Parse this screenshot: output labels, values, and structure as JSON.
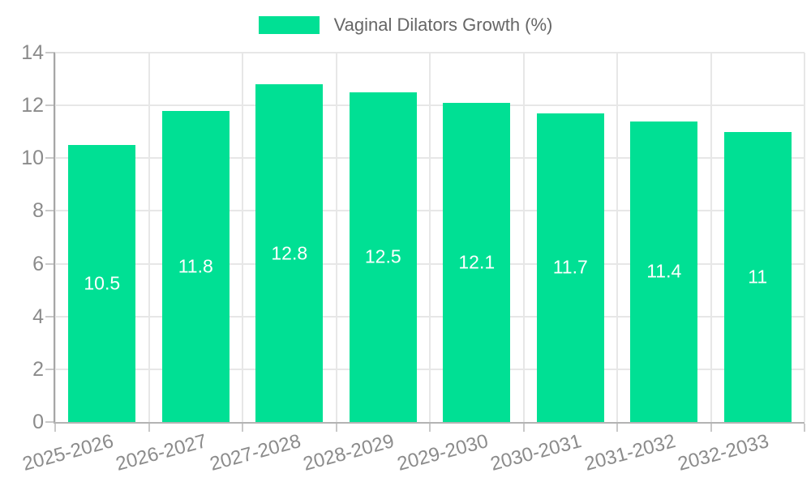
{
  "chart_data": {
    "type": "bar",
    "title": "",
    "legend": [
      "Vaginal Dilators Growth (%)"
    ],
    "legend_position": "top",
    "categories": [
      "2025-2026",
      "2026-2027",
      "2027-2028",
      "2028-2029",
      "2029-2030",
      "2030-2031",
      "2031-2032",
      "2032-2033"
    ],
    "values": [
      10.5,
      11.8,
      12.8,
      12.5,
      12.1,
      11.7,
      11.4,
      11
    ],
    "value_labels": [
      "10.5",
      "11.8",
      "12.8",
      "12.5",
      "12.1",
      "11.7",
      "11.4",
      "11"
    ],
    "xlabel": "",
    "ylabel": "",
    "ylim": [
      0,
      14
    ],
    "yticks": [
      0,
      2,
      4,
      6,
      8,
      10,
      12,
      14
    ],
    "grid": true,
    "colors": {
      "bar": "#00e094",
      "value_label": "#ffffff",
      "axis_text": "#8b8b8b",
      "legend_text": "#666666",
      "gridline": "#e7e7e7",
      "axis_line": "#a6a6a6",
      "tick": "#c9c9c9",
      "background": "#ffffff"
    }
  }
}
